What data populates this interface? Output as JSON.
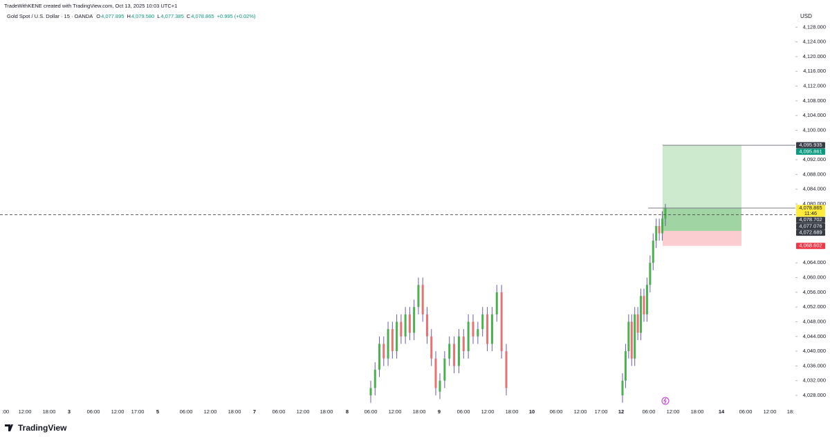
{
  "header": {
    "credit": "TradeWithKENE created with TradingView.com, Oct 13, 2025 10:03 UTC+1",
    "brand": "TradingView"
  },
  "chart_data": {
    "type": "candlestick",
    "title": "Gold Spot / U.S. Dollar · 15 · OANDA",
    "ohlc_legend": [
      {
        "label": "O",
        "value": "4,077.895"
      },
      {
        "label": "H",
        "value": "4,079.580"
      },
      {
        "label": "L",
        "value": "4,077.385"
      },
      {
        "label": "C",
        "value": "4,078.865"
      }
    ],
    "change": "+0.995 (+0.02%)",
    "y_axis_label": "USD",
    "ylim": [
      4025,
      4132
    ],
    "yticks": [
      {
        "value": 4128,
        "label": "4,128.000"
      },
      {
        "value": 4124,
        "label": "4,124.000"
      },
      {
        "value": 4120,
        "label": "4,120.000"
      },
      {
        "value": 4116,
        "label": "4,116.000"
      },
      {
        "value": 4112,
        "label": "4,112.000"
      },
      {
        "value": 4108,
        "label": "4,108.000"
      },
      {
        "value": 4104,
        "label": "4,104.000"
      },
      {
        "value": 4100,
        "label": "4,100.000"
      },
      {
        "value": 4092,
        "label": "4,092.000"
      },
      {
        "value": 4088,
        "label": "4,088.000"
      },
      {
        "value": 4084,
        "label": "4,084.000"
      },
      {
        "value": 4080,
        "label": "4,080.000"
      },
      {
        "value": 4064,
        "label": "4,064.000"
      },
      {
        "value": 4060,
        "label": "4,060.000"
      },
      {
        "value": 4056,
        "label": "4,056.000"
      },
      {
        "value": 4052,
        "label": "4,052.000"
      },
      {
        "value": 4048,
        "label": "4,048.000"
      },
      {
        "value": 4044,
        "label": "4,044.000"
      },
      {
        "value": 4040,
        "label": "4,040.000"
      },
      {
        "value": 4036,
        "label": "4,036.000"
      },
      {
        "value": 4032,
        "label": "4,032.000"
      },
      {
        "value": 4028,
        "label": "4,028.000"
      }
    ],
    "x_labels": [
      ":00",
      "12:00",
      "18:00",
      "3",
      "06:00",
      "12:00",
      "17:00",
      "5",
      "06:00",
      "12:00",
      "18:00",
      "7",
      "06:00",
      "12:00",
      "18:00",
      "8",
      "06:00",
      "12:00",
      "18:00",
      "9",
      "06:00",
      "12:00",
      "18:00",
      "10",
      "06:00",
      "12:00",
      "17:00",
      "12",
      "06:00",
      "12:00",
      "18:00",
      "14",
      "06:00",
      "12:00",
      "18:"
    ],
    "colors": {
      "up": "#4caf50",
      "down": "#e57373",
      "wick": "#6a5aa8"
    },
    "candles": {
      "open": [
        4028,
        4030,
        4035,
        4042,
        4038,
        4046,
        4040,
        4048,
        4044,
        4050,
        4045,
        4052,
        4058,
        4050,
        4044,
        4038,
        4029,
        4032,
        4038,
        4042,
        4036,
        4044,
        4040,
        4048,
        4044,
        4046,
        4050,
        4042,
        4050,
        4056,
        4040,
        4028,
        4032,
        4040,
        4048,
        4038,
        4050,
        4045,
        4055,
        4050,
        4058,
        4064,
        4070,
        4074,
        4072,
        4076
      ],
      "high": [
        4032,
        4037,
        4044,
        4044,
        4048,
        4048,
        4050,
        4050,
        4052,
        4052,
        4054,
        4060,
        4060,
        4052,
        4046,
        4040,
        4034,
        4040,
        4044,
        4044,
        4046,
        4046,
        4050,
        4050,
        4048,
        4052,
        4052,
        4052,
        4058,
        4058,
        4042,
        4034,
        4042,
        4050,
        4050,
        4052,
        4052,
        4057,
        4057,
        4060,
        4066,
        4072,
        4076,
        4076,
        4078,
        4080
      ],
      "low": [
        4026,
        4028,
        4033,
        4036,
        4036,
        4038,
        4038,
        4042,
        4042,
        4043,
        4043,
        4050,
        4048,
        4042,
        4036,
        4028,
        4027,
        4030,
        4036,
        4034,
        4034,
        4038,
        4038,
        4042,
        4042,
        4044,
        4040,
        4040,
        4048,
        4038,
        4028,
        4026,
        4030,
        4038,
        4036,
        4036,
        4043,
        4043,
        4048,
        4048,
        4056,
        4062,
        4068,
        4070,
        4070,
        4074
      ],
      "close": [
        4030,
        4035,
        4042,
        4038,
        4046,
        4040,
        4048,
        4044,
        4050,
        4045,
        4052,
        4058,
        4050,
        4044,
        4038,
        4030,
        4032,
        4038,
        4042,
        4036,
        4044,
        4040,
        4048,
        4044,
        4046,
        4050,
        4042,
        4050,
        4056,
        4040,
        4030,
        4032,
        4040,
        4048,
        4038,
        4050,
        4045,
        4055,
        4050,
        4058,
        4064,
        4070,
        4074,
        4072,
        4076,
        4079
      ]
    },
    "position": {
      "target": 4095.861,
      "entry": 4072.689,
      "stop": 4068.602,
      "current": 4078.865
    },
    "price_tags": [
      {
        "value": 4095.935,
        "label": "4,095.935",
        "color": "#363a45",
        "line": "solid"
      },
      {
        "value": 4095.861,
        "label": "4,095.861",
        "color": "#089981"
      },
      {
        "value": 4078.865,
        "label": "4,078.865",
        "color": "#ffeb3b",
        "sub": "11:46",
        "line": "solid"
      },
      {
        "value": 4078.702,
        "label": "4,078.702",
        "color": "#363a45"
      },
      {
        "value": 4077.076,
        "label": "4,077.076",
        "color": "#363a45",
        "line": "dashed"
      },
      {
        "value": 4072.689,
        "label": "4,072.689",
        "color": "#363a45"
      },
      {
        "value": 4068.602,
        "label": "4,068.602",
        "color": "#f23645"
      }
    ]
  }
}
